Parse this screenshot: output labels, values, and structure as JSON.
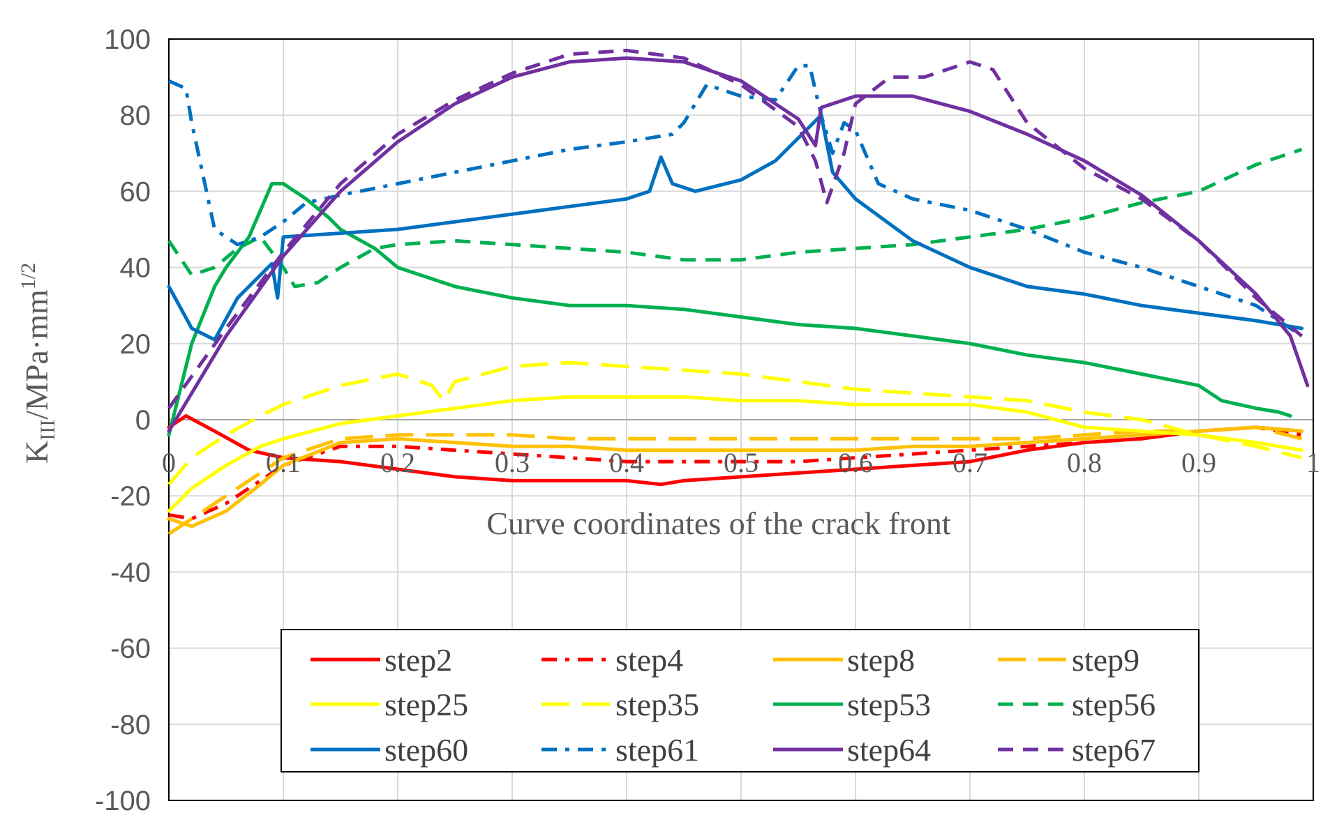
{
  "chart_data": {
    "type": "line",
    "title": "",
    "xlabel": "Curve coordinates of the crack front",
    "ylabel_main": "K",
    "ylabel_sub": "III",
    "ylabel_rest": "/MPa·mm",
    "ylabel_sup": "1/2",
    "xlim": [
      0,
      1
    ],
    "ylim": [
      -100,
      100
    ],
    "x_ticks": [
      0,
      0.1,
      0.2,
      0.3,
      0.4,
      0.5,
      0.6,
      0.7,
      0.8,
      0.9,
      1
    ],
    "x_tick_labels": [
      "0",
      "0.1",
      "0.2",
      "0.3",
      "0.4",
      "0.5",
      "0.6",
      "0.7",
      "0.8",
      "0.9",
      "1"
    ],
    "y_ticks": [
      100,
      80,
      60,
      40,
      20,
      0,
      -20,
      -40,
      -60,
      -80,
      -100
    ],
    "y_tick_labels": [
      "100",
      "80",
      "60",
      "40",
      "20",
      "0",
      "-20",
      "-40",
      "-60",
      "-80",
      "-100"
    ],
    "grid": true,
    "legend_position": "bottom-center",
    "series": [
      {
        "name": "step2",
        "color": "#ff0000",
        "dash": "solid",
        "x": [
          0,
          0.015,
          0.04,
          0.07,
          0.1,
          0.15,
          0.2,
          0.25,
          0.3,
          0.35,
          0.4,
          0.43,
          0.45,
          0.5,
          0.55,
          0.6,
          0.65,
          0.7,
          0.75,
          0.8,
          0.85,
          0.9,
          0.95,
          0.99
        ],
        "y": [
          -2,
          1,
          -3,
          -8,
          -10,
          -11,
          -13,
          -15,
          -16,
          -16,
          -16,
          -17,
          -16,
          -15,
          -14,
          -13,
          -12,
          -11,
          -8,
          -6,
          -5,
          -3,
          -2,
          -3
        ]
      },
      {
        "name": "step4",
        "color": "#ff0000",
        "dash": "dashdot",
        "x": [
          0,
          0.02,
          0.05,
          0.08,
          0.1,
          0.15,
          0.2,
          0.25,
          0.3,
          0.35,
          0.4,
          0.45,
          0.5,
          0.55,
          0.6,
          0.65,
          0.7,
          0.75,
          0.8,
          0.85,
          0.9,
          0.95,
          0.99
        ],
        "y": [
          -25,
          -26,
          -22,
          -16,
          -12,
          -7,
          -7,
          -8,
          -9,
          -10,
          -11,
          -11,
          -11,
          -11,
          -10,
          -9,
          -8,
          -7,
          -6,
          -5,
          -3,
          -2,
          -4
        ]
      },
      {
        "name": "step8",
        "color": "#ffc000",
        "dash": "solid",
        "x": [
          0,
          0.02,
          0.05,
          0.08,
          0.1,
          0.15,
          0.2,
          0.25,
          0.3,
          0.35,
          0.4,
          0.45,
          0.5,
          0.55,
          0.6,
          0.65,
          0.7,
          0.75,
          0.8,
          0.85,
          0.9,
          0.95,
          0.99
        ],
        "y": [
          -26,
          -28,
          -24,
          -17,
          -12,
          -6,
          -5,
          -6,
          -7,
          -7,
          -8,
          -8,
          -8,
          -8,
          -8,
          -7,
          -7,
          -6,
          -5,
          -4,
          -3,
          -2,
          -3
        ]
      },
      {
        "name": "step9",
        "color": "#ffc000",
        "dash": "longdash",
        "x": [
          0,
          0.02,
          0.05,
          0.08,
          0.1,
          0.15,
          0.2,
          0.25,
          0.3,
          0.35,
          0.4,
          0.45,
          0.5,
          0.55,
          0.6,
          0.65,
          0.7,
          0.75,
          0.8,
          0.85,
          0.9,
          0.95,
          0.99
        ],
        "y": [
          -30,
          -26,
          -20,
          -14,
          -10,
          -5,
          -4,
          -4,
          -4,
          -5,
          -5,
          -5,
          -5,
          -5,
          -5,
          -5,
          -5,
          -5,
          -4,
          -3,
          -3,
          -2,
          -5
        ]
      },
      {
        "name": "step25",
        "color": "#ffff00",
        "dash": "solid",
        "x": [
          0,
          0.02,
          0.05,
          0.08,
          0.1,
          0.15,
          0.2,
          0.25,
          0.3,
          0.35,
          0.4,
          0.45,
          0.5,
          0.55,
          0.6,
          0.65,
          0.7,
          0.75,
          0.8,
          0.85,
          0.9,
          0.95,
          0.99
        ],
        "y": [
          -24,
          -18,
          -12,
          -7,
          -5,
          -1,
          1,
          3,
          5,
          6,
          6,
          6,
          5,
          5,
          4,
          4,
          4,
          2,
          -2,
          -3,
          -4,
          -6,
          -8
        ]
      },
      {
        "name": "step35",
        "color": "#ffff00",
        "dash": "longdash",
        "x": [
          0,
          0.02,
          0.05,
          0.08,
          0.1,
          0.15,
          0.2,
          0.23,
          0.24,
          0.25,
          0.3,
          0.35,
          0.4,
          0.45,
          0.5,
          0.55,
          0.6,
          0.65,
          0.7,
          0.75,
          0.8,
          0.85,
          0.9,
          0.95,
          0.99
        ],
        "y": [
          -17,
          -10,
          -4,
          1,
          4,
          9,
          12,
          9,
          5,
          10,
          14,
          15,
          14,
          13,
          12,
          10,
          8,
          7,
          6,
          5,
          2,
          0,
          -4,
          -7,
          -10
        ]
      },
      {
        "name": "step53",
        "color": "#00b050",
        "dash": "solid",
        "x": [
          0,
          0.02,
          0.04,
          0.05,
          0.07,
          0.08,
          0.09,
          0.1,
          0.12,
          0.14,
          0.15,
          0.18,
          0.2,
          0.25,
          0.3,
          0.35,
          0.4,
          0.45,
          0.5,
          0.55,
          0.6,
          0.65,
          0.7,
          0.75,
          0.8,
          0.85,
          0.9,
          0.92,
          0.95,
          0.97,
          0.98
        ],
        "y": [
          -4,
          20,
          35,
          40,
          48,
          55,
          62,
          62,
          58,
          53,
          50,
          45,
          40,
          35,
          32,
          30,
          30,
          29,
          27,
          25,
          24,
          22,
          20,
          17,
          15,
          12,
          9,
          5,
          3,
          2,
          1
        ]
      },
      {
        "name": "step56",
        "color": "#00b050",
        "dash": "dashed",
        "x": [
          0,
          0.02,
          0.04,
          0.06,
          0.08,
          0.1,
          0.11,
          0.13,
          0.15,
          0.18,
          0.2,
          0.25,
          0.3,
          0.35,
          0.4,
          0.45,
          0.5,
          0.55,
          0.6,
          0.65,
          0.7,
          0.75,
          0.8,
          0.85,
          0.9,
          0.95,
          0.99
        ],
        "y": [
          47,
          38,
          40,
          45,
          48,
          40,
          35,
          36,
          40,
          45,
          46,
          47,
          46,
          45,
          44,
          42,
          42,
          44,
          45,
          46,
          48,
          50,
          53,
          57,
          60,
          67,
          71
        ]
      },
      {
        "name": "step60",
        "color": "#0070c0",
        "dash": "solid",
        "x": [
          0,
          0.02,
          0.04,
          0.06,
          0.08,
          0.09,
          0.095,
          0.1,
          0.15,
          0.2,
          0.25,
          0.3,
          0.35,
          0.4,
          0.42,
          0.43,
          0.44,
          0.46,
          0.5,
          0.53,
          0.55,
          0.57,
          0.58,
          0.6,
          0.65,
          0.7,
          0.75,
          0.8,
          0.85,
          0.9,
          0.95,
          0.99
        ],
        "y": [
          35,
          24,
          21,
          32,
          38,
          41,
          32,
          48,
          49,
          50,
          52,
          54,
          56,
          58,
          60,
          69,
          62,
          60,
          63,
          68,
          74,
          80,
          65,
          58,
          47,
          40,
          35,
          33,
          30,
          28,
          26,
          24
        ]
      },
      {
        "name": "step61",
        "color": "#0070c0",
        "dash": "dashdot",
        "x": [
          0,
          0.015,
          0.02,
          0.04,
          0.06,
          0.08,
          0.1,
          0.12,
          0.15,
          0.2,
          0.25,
          0.3,
          0.35,
          0.4,
          0.44,
          0.45,
          0.47,
          0.5,
          0.53,
          0.55,
          0.56,
          0.57,
          0.58,
          0.59,
          0.6,
          0.62,
          0.65,
          0.7,
          0.75,
          0.8,
          0.85,
          0.9,
          0.95,
          0.99
        ],
        "y": [
          89,
          87,
          78,
          50,
          46,
          48,
          52,
          57,
          59,
          62,
          65,
          68,
          71,
          73,
          75,
          78,
          88,
          85,
          84,
          93,
          93,
          80,
          70,
          78,
          76,
          62,
          58,
          55,
          50,
          44,
          40,
          35,
          30,
          22
        ]
      },
      {
        "name": "step64",
        "color": "#7030a0",
        "dash": "solid",
        "x": [
          0,
          0.05,
          0.1,
          0.15,
          0.2,
          0.25,
          0.3,
          0.35,
          0.4,
          0.45,
          0.5,
          0.55,
          0.565,
          0.57,
          0.6,
          0.65,
          0.7,
          0.75,
          0.8,
          0.85,
          0.9,
          0.95,
          0.98,
          0.995
        ],
        "y": [
          -3,
          22,
          43,
          60,
          73,
          83,
          90,
          94,
          95,
          94,
          89,
          79,
          72,
          82,
          85,
          85,
          81,
          75,
          68,
          59,
          47,
          33,
          22,
          9
        ]
      },
      {
        "name": "step67",
        "color": "#7030a0",
        "dash": "dashed",
        "x": [
          0,
          0.05,
          0.1,
          0.15,
          0.2,
          0.25,
          0.3,
          0.35,
          0.4,
          0.45,
          0.5,
          0.55,
          0.565,
          0.575,
          0.59,
          0.6,
          0.63,
          0.66,
          0.7,
          0.72,
          0.75,
          0.8,
          0.85,
          0.9,
          0.95,
          0.99
        ],
        "y": [
          3,
          24,
          44,
          62,
          75,
          84,
          91,
          96,
          97,
          95,
          88,
          77,
          68,
          57,
          70,
          83,
          90,
          90,
          94,
          92,
          78,
          66,
          58,
          47,
          32,
          22
        ]
      }
    ]
  }
}
